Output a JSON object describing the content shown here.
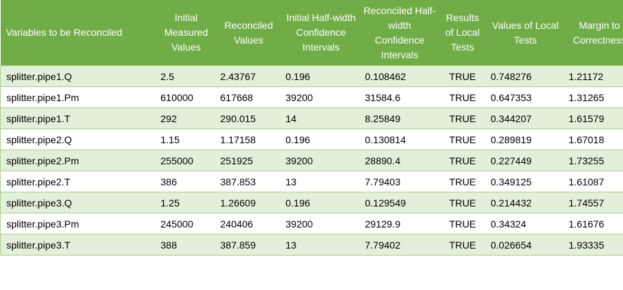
{
  "table": {
    "header": [
      "Variables to be Reconciled",
      "Initial Measured Values",
      "Reconciled Values",
      "Initial Half-width Confidence Intervals",
      "Reconciled Half-width Confidence Intervals",
      "Results of Local Tests",
      "Values of Local Tests",
      "Margin to Correctness"
    ],
    "rows": [
      [
        "splitter.pipe1.Q",
        "2.5",
        "2.43767",
        "0.196",
        "0.108462",
        "TRUE",
        "0.748276",
        "1.21172"
      ],
      [
        "splitter.pipe1.Pm",
        "610000",
        "617668",
        "39200",
        "31584.6",
        "TRUE",
        "0.647353",
        "1.31265"
      ],
      [
        "splitter.pipe1.T",
        "292",
        "290.015",
        "14",
        "8.25849",
        "TRUE",
        "0.344207",
        "1.61579"
      ],
      [
        "splitter.pipe2.Q",
        "1.15",
        "1.17158",
        "0.196",
        "0.130814",
        "TRUE",
        "0.289819",
        "1.67018"
      ],
      [
        "splitter.pipe2.Pm",
        "255000",
        "251925",
        "39200",
        "28890.4",
        "TRUE",
        "0.227449",
        "1.73255"
      ],
      [
        "splitter.pipe2.T",
        "386",
        "387.853",
        "13",
        "7.79403",
        "TRUE",
        "0.349125",
        "1.61087"
      ],
      [
        "splitter.pipe3.Q",
        "1.25",
        "1.26609",
        "0.196",
        "0.129549",
        "TRUE",
        "0.214432",
        "1.74557"
      ],
      [
        "splitter.pipe3.Pm",
        "245000",
        "240406",
        "39200",
        "29129.9",
        "TRUE",
        "0.34324",
        "1.61676"
      ],
      [
        "splitter.pipe3.T",
        "388",
        "387.859",
        "13",
        "7.79402",
        "TRUE",
        "0.026654",
        "1.93335"
      ]
    ]
  }
}
